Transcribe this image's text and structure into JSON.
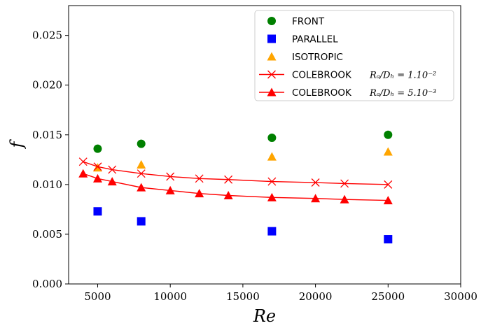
{
  "chart_data": {
    "type": "scatter",
    "xlabel": "Re",
    "ylabel": "f",
    "xlim": [
      3000,
      30000
    ],
    "ylim": [
      0.0,
      0.028
    ],
    "xticks": [
      5000,
      10000,
      15000,
      20000,
      25000,
      30000
    ],
    "xtick_labels": [
      "5000",
      "10000",
      "15000",
      "20000",
      "25000",
      "30000"
    ],
    "yticks": [
      0.0,
      0.005,
      0.01,
      0.015,
      0.02,
      0.025
    ],
    "ytick_labels": [
      "0.000",
      "0.005",
      "0.010",
      "0.015",
      "0.020",
      "0.025"
    ],
    "grid": false,
    "legend_position": "top-right",
    "series": [
      {
        "name": "FRONT",
        "legend_text": "FRONT",
        "legend_math": "",
        "marker": "circle",
        "color": "#008000",
        "line": false,
        "x": [
          5000,
          8000,
          17000,
          25000
        ],
        "y": [
          0.0136,
          0.0141,
          0.0147,
          0.015
        ]
      },
      {
        "name": "PARALLEL",
        "legend_text": "PARALLEL",
        "legend_math": "",
        "marker": "square",
        "color": "#0000ff",
        "line": false,
        "x": [
          5000,
          8000,
          17000,
          25000
        ],
        "y": [
          0.0073,
          0.0063,
          0.0053,
          0.0045
        ]
      },
      {
        "name": "ISOTROPIC",
        "legend_text": "ISOTROPIC",
        "legend_math": "",
        "marker": "triangle",
        "color": "#ffa500",
        "line": false,
        "x": [
          5000,
          8000,
          17000,
          25000
        ],
        "y": [
          0.0117,
          0.012,
          0.0128,
          0.0133
        ]
      },
      {
        "name": "COLEBROOK Ra/Dh = 1.10^-2",
        "legend_text": "COLEBROOK",
        "legend_math": "Rₐ/Dₕ = 1.10⁻²",
        "marker": "x",
        "color": "#ff0000",
        "line": true,
        "x": [
          4000,
          5000,
          6000,
          8000,
          10000,
          12000,
          14000,
          17000,
          20000,
          22000,
          25000
        ],
        "y": [
          0.0123,
          0.0118,
          0.0115,
          0.0111,
          0.0108,
          0.0106,
          0.0105,
          0.0103,
          0.0102,
          0.0101,
          0.01
        ]
      },
      {
        "name": "COLEBROOK Ra/Dh = 5.10^-3",
        "legend_text": "COLEBROOK",
        "legend_math": "Rₐ/Dₕ = 5.10⁻³",
        "marker": "triangle",
        "color": "#ff0000",
        "line": true,
        "x": [
          4000,
          5000,
          6000,
          8000,
          10000,
          12000,
          14000,
          17000,
          20000,
          22000,
          25000
        ],
        "y": [
          0.0111,
          0.0106,
          0.0103,
          0.0097,
          0.0094,
          0.0091,
          0.0089,
          0.0087,
          0.0086,
          0.0085,
          0.0084
        ]
      }
    ]
  }
}
